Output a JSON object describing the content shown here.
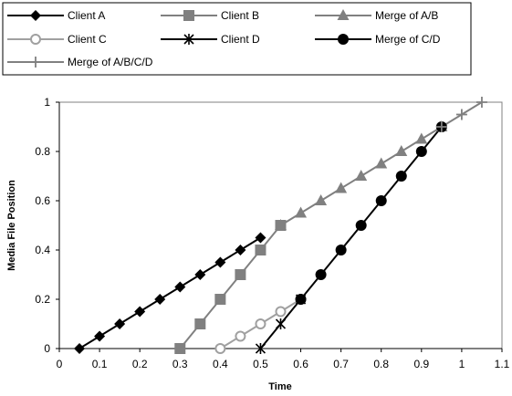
{
  "chart_data": {
    "type": "line",
    "title": "",
    "xlabel": "Time",
    "ylabel": "Media File Position",
    "xlim": [
      0,
      1.1
    ],
    "ylim": [
      0,
      1.0
    ],
    "xticks": [
      "0",
      "0.1",
      "0.2",
      "0.3",
      "0.4",
      "0.5",
      "0.6",
      "0.7",
      "0.8",
      "0.9",
      "1",
      "1.1"
    ],
    "yticks": [
      "0",
      "0.2",
      "0.4",
      "0.6",
      "0.8",
      "1"
    ],
    "grid": false,
    "legend_position": "top",
    "series": [
      {
        "name": "Client A",
        "marker": "diamond",
        "color": "#000000",
        "x": [
          0.05,
          0.1,
          0.15,
          0.2,
          0.25,
          0.3,
          0.35,
          0.4,
          0.45,
          0.5
        ],
        "y": [
          0,
          0.05,
          0.1,
          0.15,
          0.2,
          0.25,
          0.3,
          0.35,
          0.4,
          0.45
        ]
      },
      {
        "name": "Client B",
        "marker": "square",
        "color": "#808080",
        "x": [
          0.3,
          0.35,
          0.4,
          0.45,
          0.5,
          0.55
        ],
        "y": [
          0,
          0.1,
          0.2,
          0.3,
          0.4,
          0.5
        ]
      },
      {
        "name": "Merge of A/B",
        "marker": "triangle",
        "color": "#808080",
        "x": [
          0.55,
          0.6,
          0.65,
          0.7,
          0.75,
          0.8,
          0.85,
          0.9,
          0.95
        ],
        "y": [
          0.5,
          0.55,
          0.6,
          0.65,
          0.7,
          0.75,
          0.8,
          0.85,
          0.9
        ]
      },
      {
        "name": "Client C",
        "marker": "circle-open",
        "color": "#a0a0a0",
        "x": [
          0.4,
          0.45,
          0.5,
          0.55,
          0.6
        ],
        "y": [
          0,
          0.05,
          0.1,
          0.15,
          0.2
        ]
      },
      {
        "name": "Client D",
        "marker": "asterisk",
        "color": "#000000",
        "x": [
          0.5,
          0.55,
          0.6
        ],
        "y": [
          0,
          0.1,
          0.2
        ]
      },
      {
        "name": "Merge of C/D",
        "marker": "circle",
        "color": "#000000",
        "x": [
          0.6,
          0.65,
          0.7,
          0.75,
          0.8,
          0.85,
          0.9,
          0.95
        ],
        "y": [
          0.2,
          0.3,
          0.4,
          0.5,
          0.6,
          0.7,
          0.8,
          0.9
        ]
      },
      {
        "name": "Merge of A/B/C/D",
        "marker": "plus",
        "color": "#808080",
        "x": [
          0.95,
          1.0,
          1.05
        ],
        "y": [
          0.9,
          0.95,
          1.0
        ]
      }
    ]
  }
}
